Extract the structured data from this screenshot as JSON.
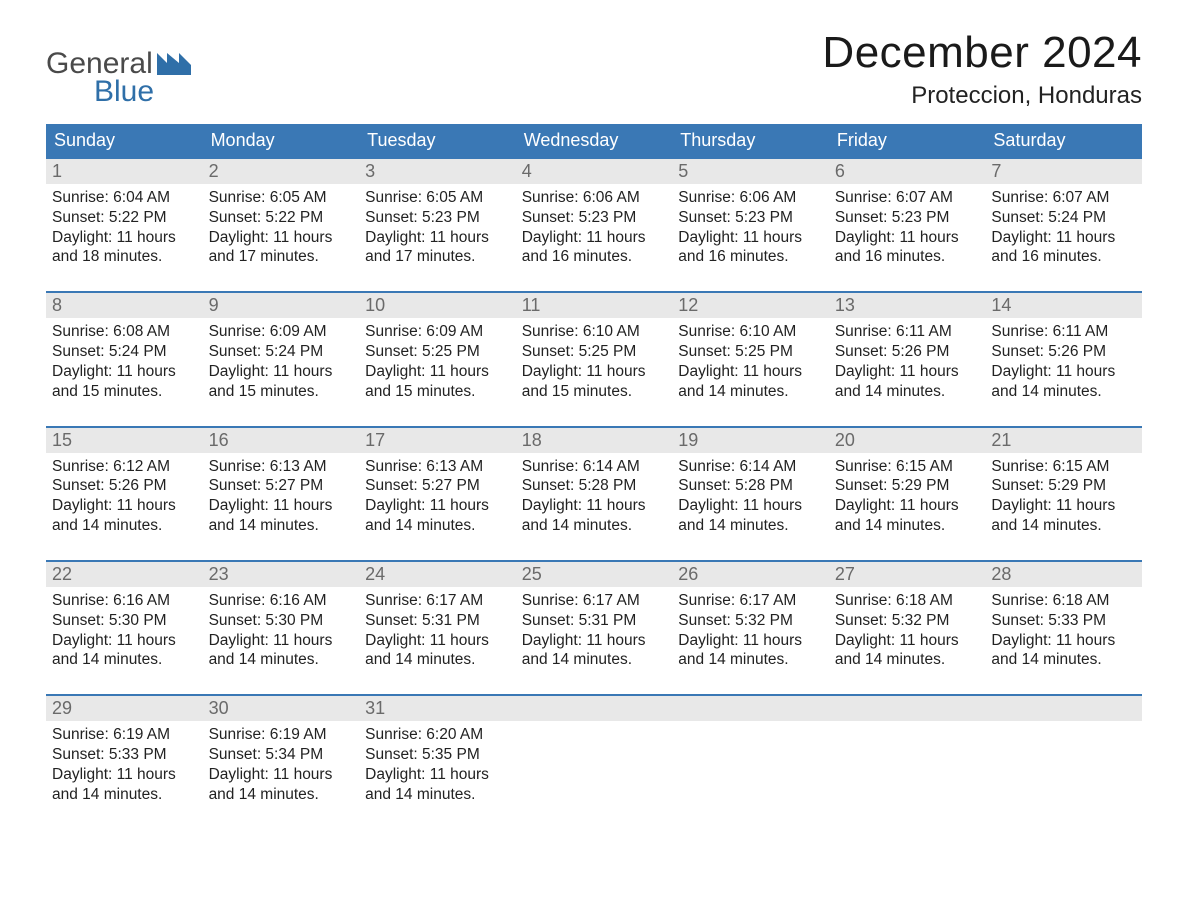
{
  "brand": {
    "word1": "General",
    "word2": "Blue",
    "flag_color": "#2f6fa8",
    "text_color_1": "#4a4a4a",
    "text_color_2": "#2f6fa8"
  },
  "title": "December 2024",
  "location": "Proteccion, Honduras",
  "colors": {
    "header_bg": "#3a78b5",
    "header_text": "#ffffff",
    "daynum_bg": "#e8e8e8",
    "daynum_text": "#6a6a6a",
    "body_text": "#222222",
    "week_sep": "#3a78b5",
    "page_bg": "#ffffff"
  },
  "typography": {
    "title_fontsize_pt": 33,
    "location_fontsize_pt": 18,
    "dow_fontsize_pt": 14,
    "daynum_fontsize_pt": 14,
    "body_fontsize_pt": 12,
    "font_family": "Arial"
  },
  "days_of_week": [
    "Sunday",
    "Monday",
    "Tuesday",
    "Wednesday",
    "Thursday",
    "Friday",
    "Saturday"
  ],
  "labels": {
    "sunrise": "Sunrise",
    "sunset": "Sunset",
    "daylight": "Daylight"
  },
  "weeks": [
    [
      {
        "n": 1,
        "sunrise": "6:04 AM",
        "sunset": "5:22 PM",
        "dl_h": 11,
        "dl_m": 18
      },
      {
        "n": 2,
        "sunrise": "6:05 AM",
        "sunset": "5:22 PM",
        "dl_h": 11,
        "dl_m": 17
      },
      {
        "n": 3,
        "sunrise": "6:05 AM",
        "sunset": "5:23 PM",
        "dl_h": 11,
        "dl_m": 17
      },
      {
        "n": 4,
        "sunrise": "6:06 AM",
        "sunset": "5:23 PM",
        "dl_h": 11,
        "dl_m": 16
      },
      {
        "n": 5,
        "sunrise": "6:06 AM",
        "sunset": "5:23 PM",
        "dl_h": 11,
        "dl_m": 16
      },
      {
        "n": 6,
        "sunrise": "6:07 AM",
        "sunset": "5:23 PM",
        "dl_h": 11,
        "dl_m": 16
      },
      {
        "n": 7,
        "sunrise": "6:07 AM",
        "sunset": "5:24 PM",
        "dl_h": 11,
        "dl_m": 16
      }
    ],
    [
      {
        "n": 8,
        "sunrise": "6:08 AM",
        "sunset": "5:24 PM",
        "dl_h": 11,
        "dl_m": 15
      },
      {
        "n": 9,
        "sunrise": "6:09 AM",
        "sunset": "5:24 PM",
        "dl_h": 11,
        "dl_m": 15
      },
      {
        "n": 10,
        "sunrise": "6:09 AM",
        "sunset": "5:25 PM",
        "dl_h": 11,
        "dl_m": 15
      },
      {
        "n": 11,
        "sunrise": "6:10 AM",
        "sunset": "5:25 PM",
        "dl_h": 11,
        "dl_m": 15
      },
      {
        "n": 12,
        "sunrise": "6:10 AM",
        "sunset": "5:25 PM",
        "dl_h": 11,
        "dl_m": 14
      },
      {
        "n": 13,
        "sunrise": "6:11 AM",
        "sunset": "5:26 PM",
        "dl_h": 11,
        "dl_m": 14
      },
      {
        "n": 14,
        "sunrise": "6:11 AM",
        "sunset": "5:26 PM",
        "dl_h": 11,
        "dl_m": 14
      }
    ],
    [
      {
        "n": 15,
        "sunrise": "6:12 AM",
        "sunset": "5:26 PM",
        "dl_h": 11,
        "dl_m": 14
      },
      {
        "n": 16,
        "sunrise": "6:13 AM",
        "sunset": "5:27 PM",
        "dl_h": 11,
        "dl_m": 14
      },
      {
        "n": 17,
        "sunrise": "6:13 AM",
        "sunset": "5:27 PM",
        "dl_h": 11,
        "dl_m": 14
      },
      {
        "n": 18,
        "sunrise": "6:14 AM",
        "sunset": "5:28 PM",
        "dl_h": 11,
        "dl_m": 14
      },
      {
        "n": 19,
        "sunrise": "6:14 AM",
        "sunset": "5:28 PM",
        "dl_h": 11,
        "dl_m": 14
      },
      {
        "n": 20,
        "sunrise": "6:15 AM",
        "sunset": "5:29 PM",
        "dl_h": 11,
        "dl_m": 14
      },
      {
        "n": 21,
        "sunrise": "6:15 AM",
        "sunset": "5:29 PM",
        "dl_h": 11,
        "dl_m": 14
      }
    ],
    [
      {
        "n": 22,
        "sunrise": "6:16 AM",
        "sunset": "5:30 PM",
        "dl_h": 11,
        "dl_m": 14
      },
      {
        "n": 23,
        "sunrise": "6:16 AM",
        "sunset": "5:30 PM",
        "dl_h": 11,
        "dl_m": 14
      },
      {
        "n": 24,
        "sunrise": "6:17 AM",
        "sunset": "5:31 PM",
        "dl_h": 11,
        "dl_m": 14
      },
      {
        "n": 25,
        "sunrise": "6:17 AM",
        "sunset": "5:31 PM",
        "dl_h": 11,
        "dl_m": 14
      },
      {
        "n": 26,
        "sunrise": "6:17 AM",
        "sunset": "5:32 PM",
        "dl_h": 11,
        "dl_m": 14
      },
      {
        "n": 27,
        "sunrise": "6:18 AM",
        "sunset": "5:32 PM",
        "dl_h": 11,
        "dl_m": 14
      },
      {
        "n": 28,
        "sunrise": "6:18 AM",
        "sunset": "5:33 PM",
        "dl_h": 11,
        "dl_m": 14
      }
    ],
    [
      {
        "n": 29,
        "sunrise": "6:19 AM",
        "sunset": "5:33 PM",
        "dl_h": 11,
        "dl_m": 14
      },
      {
        "n": 30,
        "sunrise": "6:19 AM",
        "sunset": "5:34 PM",
        "dl_h": 11,
        "dl_m": 14
      },
      {
        "n": 31,
        "sunrise": "6:20 AM",
        "sunset": "5:35 PM",
        "dl_h": 11,
        "dl_m": 14
      },
      null,
      null,
      null,
      null
    ]
  ]
}
